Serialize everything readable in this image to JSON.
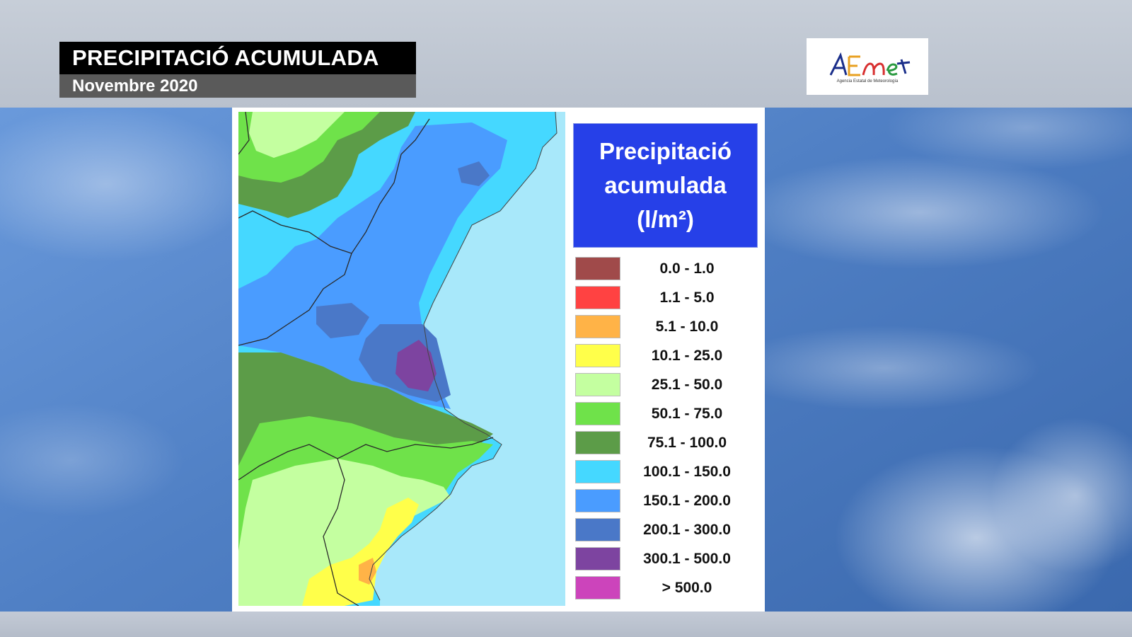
{
  "header": {
    "title": "PRECIPITACIÓ ACUMULADA",
    "subtitle": "Novembre 2020"
  },
  "logo": {
    "text": "AEMet",
    "tagline": "Agencia Estatal de Meteorología"
  },
  "legend": {
    "title_lines": [
      "Precipitació",
      "acumulada",
      "(l/m²)"
    ],
    "items": [
      {
        "label": "0.0 - 1.0",
        "color": "#a04a4a"
      },
      {
        "label": "1.1 - 5.0",
        "color": "#ff4242"
      },
      {
        "label": "5.1 - 10.0",
        "color": "#ffb347"
      },
      {
        "label": "10.1 - 25.0",
        "color": "#ffff4a"
      },
      {
        "label": "25.1 - 50.0",
        "color": "#c4ffa0"
      },
      {
        "label": "50.1 - 75.0",
        "color": "#6fe24a"
      },
      {
        "label": "75.1 - 100.0",
        "color": "#5c9c48"
      },
      {
        "label": "100.1 - 150.0",
        "color": "#45d8ff"
      },
      {
        "label": "150.1 - 200.0",
        "color": "#4a9cff"
      },
      {
        "label": "200.1 - 300.0",
        "color": "#4a78c8"
      },
      {
        "label": "300.1 - 500.0",
        "color": "#7d44a0"
      },
      {
        "label": "> 500.0",
        "color": "#cc44bb"
      }
    ]
  },
  "colors": {
    "sea": "#a8e8fa",
    "title_bg": "#000000",
    "subtitle_bg": "#5a5a5a",
    "legend_header_bg": "#2640e8"
  }
}
